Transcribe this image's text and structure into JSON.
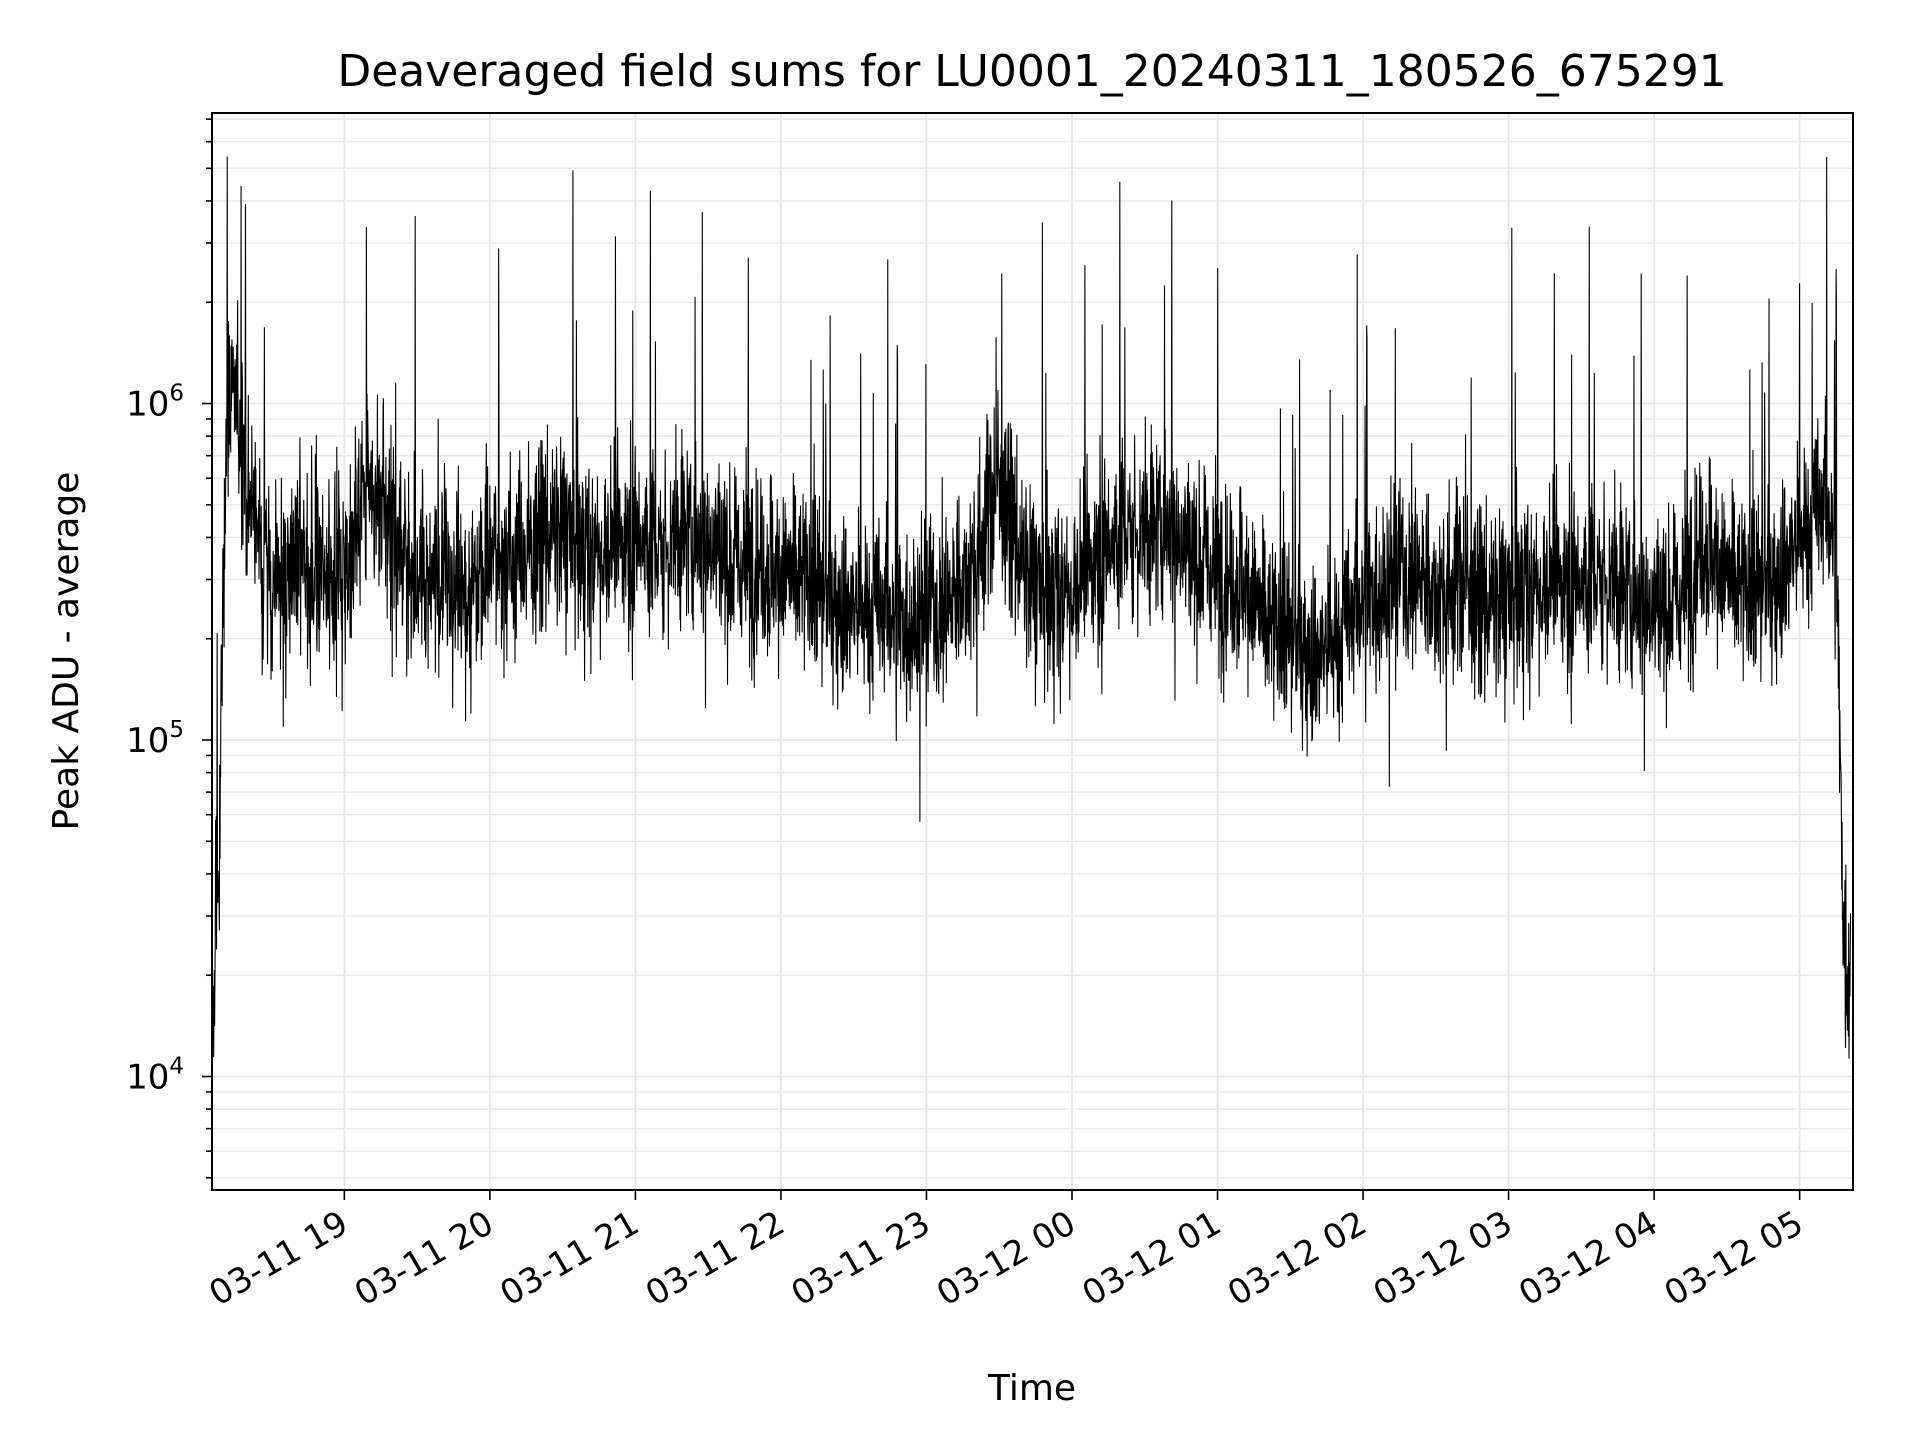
{
  "chart_data": {
    "type": "line",
    "title": "Deaveraged field sums for LU0001_20240311_180526_675291",
    "xlabel": "Time",
    "ylabel": "Peak ADU - average",
    "yscale": "log",
    "ylim": [
      4600,
      7300000
    ],
    "xlim": [
      "03-11 18:05:26",
      "03-12 05:22:00"
    ],
    "grid": true,
    "line_color": "#000000",
    "x_ticks": [
      {
        "label": "03-11 19",
        "time": "03-11 19:00"
      },
      {
        "label": "03-11 20",
        "time": "03-11 20:00"
      },
      {
        "label": "03-11 21",
        "time": "03-11 21:00"
      },
      {
        "label": "03-11 22",
        "time": "03-11 22:00"
      },
      {
        "label": "03-11 23",
        "time": "03-11 23:00"
      },
      {
        "label": "03-12 00",
        "time": "03-12 00:00"
      },
      {
        "label": "03-12 01",
        "time": "03-12 01:00"
      },
      {
        "label": "03-12 02",
        "time": "03-12 02:00"
      },
      {
        "label": "03-12 03",
        "time": "03-12 03:00"
      },
      {
        "label": "03-12 04",
        "time": "03-12 04:00"
      },
      {
        "label": "03-12 05",
        "time": "03-12 05:00"
      }
    ],
    "y_ticks": [
      {
        "base": "10",
        "exp": "4",
        "value": 10000
      },
      {
        "base": "10",
        "exp": "5",
        "value": 100000
      },
      {
        "base": "10",
        "exp": "6",
        "value": 1000000
      }
    ],
    "series": [
      {
        "x": [
          "03-11 18:06",
          "03-11 18:07",
          "03-11 18:08",
          "03-11 18:10",
          "03-11 18:12",
          "03-11 18:15",
          "03-11 18:20",
          "03-11 18:30",
          "03-11 18:40",
          "03-11 18:50",
          "03-11 19:00",
          "03-11 19:10",
          "03-11 19:20",
          "03-11 19:30",
          "03-11 19:40",
          "03-11 19:50",
          "03-11 20:00",
          "03-11 20:10",
          "03-11 20:20",
          "03-11 20:30",
          "03-11 20:40",
          "03-11 20:50",
          "03-11 21:00",
          "03-11 21:10",
          "03-11 21:20",
          "03-11 21:30",
          "03-11 21:40",
          "03-11 21:50",
          "03-11 22:00",
          "03-11 22:10",
          "03-11 22:20",
          "03-11 22:30",
          "03-11 22:40",
          "03-11 22:50",
          "03-11 23:00",
          "03-11 23:10",
          "03-11 23:20",
          "03-11 23:30",
          "03-11 23:40",
          "03-11 23:50",
          "03-12 00:00",
          "03-12 00:10",
          "03-12 00:20",
          "03-12 00:30",
          "03-12 00:40",
          "03-12 00:50",
          "03-12 01:00",
          "03-12 01:10",
          "03-12 01:20",
          "03-12 01:30",
          "03-12 01:40",
          "03-12 01:50",
          "03-12 02:00",
          "03-12 02:10",
          "03-12 02:20",
          "03-12 02:30",
          "03-12 02:40",
          "03-12 02:50",
          "03-12 03:00",
          "03-12 03:10",
          "03-12 03:20",
          "03-12 03:30",
          "03-12 03:40",
          "03-12 03:50",
          "03-12 04:00",
          "03-12 04:10",
          "03-12 04:20",
          "03-12 04:30",
          "03-12 04:40",
          "03-12 04:50",
          "03-12 05:00",
          "03-12 05:10",
          "03-12 05:15",
          "03-12 05:18",
          "03-12 05:20",
          "03-12 05:21"
        ],
        "y": [
          10500,
          50000,
          30000,
          300000,
          1000000,
          1200000,
          500000,
          300000,
          350000,
          300000,
          320000,
          600000,
          400000,
          300000,
          320000,
          260000,
          380000,
          330000,
          400000,
          420000,
          350000,
          380000,
          400000,
          360000,
          420000,
          400000,
          330000,
          350000,
          310000,
          300000,
          260000,
          250000,
          240000,
          230000,
          240000,
          260000,
          350000,
          600000,
          320000,
          260000,
          280000,
          350000,
          400000,
          420000,
          450000,
          350000,
          320000,
          300000,
          220000,
          200000,
          180000,
          200000,
          260000,
          300000,
          320000,
          280000,
          300000,
          250000,
          260000,
          280000,
          300000,
          290000,
          300000,
          280000,
          250000,
          260000,
          400000,
          300000,
          270000,
          300000,
          400000,
          500000,
          400000,
          30000,
          20000,
          25000
        ]
      }
    ]
  }
}
